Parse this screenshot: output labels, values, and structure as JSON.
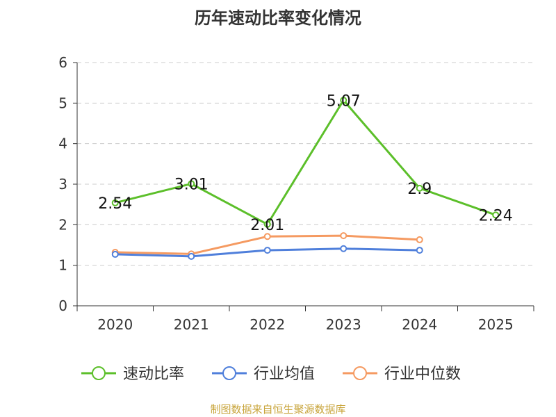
{
  "chart_data": {
    "type": "line",
    "title": "历年速动比率变化情况",
    "categories": [
      "2020",
      "2021",
      "2022",
      "2023",
      "2024",
      "2025"
    ],
    "ylim": [
      0,
      6
    ],
    "yticks": [
      "0",
      "1",
      "2",
      "3",
      "4",
      "5",
      "6"
    ],
    "grid": true,
    "legend_position": "bottom",
    "series": [
      {
        "name": "速动比率",
        "color": "#5cbf2a",
        "values": [
          2.54,
          3.01,
          2.01,
          5.07,
          2.9,
          2.24
        ],
        "labels": [
          "2.54",
          "3.01",
          "2.01",
          "5.07",
          "2.9",
          "2.24"
        ]
      },
      {
        "name": "行业均值",
        "color": "#4f7fdb",
        "values": [
          1.27,
          1.22,
          1.37,
          1.41,
          1.37,
          null
        ]
      },
      {
        "name": "行业中位数",
        "color": "#f59a61",
        "values": [
          1.32,
          1.28,
          1.71,
          1.73,
          1.63,
          null
        ]
      }
    ]
  },
  "source": "制图数据来自恒生聚源数据库"
}
